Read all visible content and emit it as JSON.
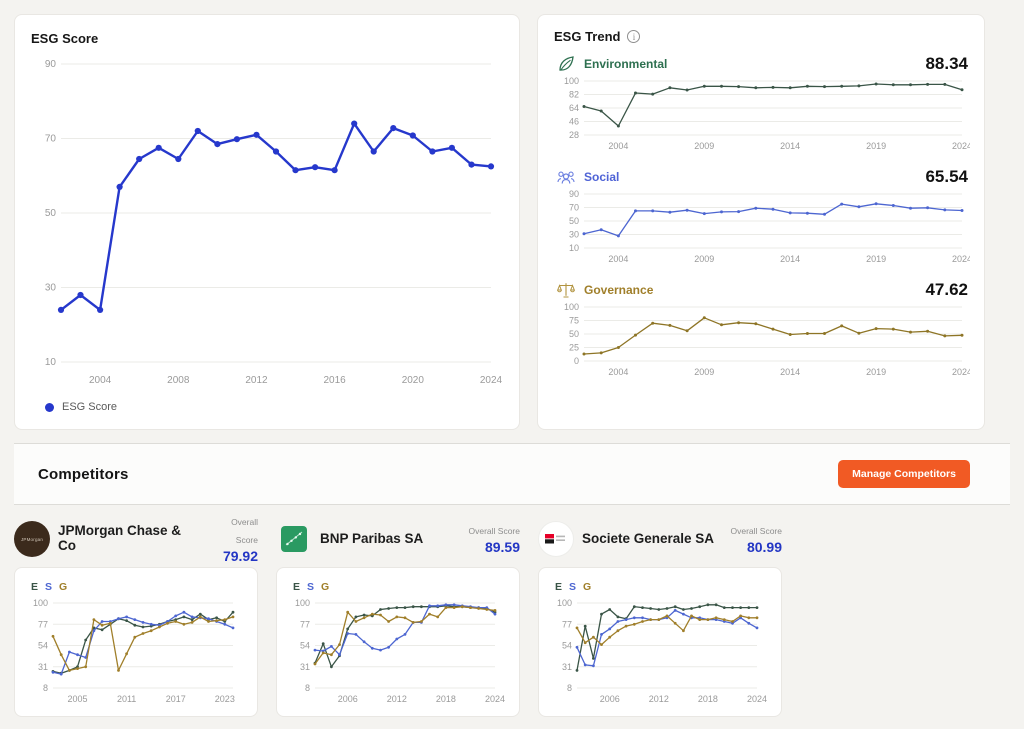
{
  "page": {
    "background": "#f4f3f0"
  },
  "esg_score_card": {
    "title": "ESG Score",
    "legend_label": "ESG Score",
    "line_color": "#2638cc"
  },
  "esg_trend_card": {
    "title": "ESG Trend",
    "sections": [
      {
        "label": "Environmental",
        "value": "88.34",
        "label_color": "#2e7050"
      },
      {
        "label": "Social",
        "value": "65.54",
        "label_color": "#4f63d6"
      },
      {
        "label": "Governance",
        "value": "47.62",
        "label_color": "#a07f2a"
      }
    ]
  },
  "competitors": {
    "heading": "Competitors",
    "manage_button_label": "Manage Competitors",
    "manage_button_color": "#f15a24",
    "overall_score_label": "Overall Score",
    "score_color": "#2336c4",
    "esg_legend": [
      {
        "letter": "E",
        "color": "#3a5547"
      },
      {
        "letter": "S",
        "color": "#4d66d1"
      },
      {
        "letter": "G",
        "color": "#a07f2a"
      }
    ],
    "items": [
      {
        "name": "JPMorgan Chase & Co",
        "overall_score": "79.92",
        "logo_text": "JPMorgan",
        "logo_color": "#3b2a1c"
      },
      {
        "name": "BNP Paribas SA",
        "overall_score": "89.59",
        "logo_color": "#2a9a62"
      },
      {
        "name": "Societe Generale SA",
        "overall_score": "80.99",
        "logo_colors": [
          "#e60028",
          "#1a1a1a"
        ]
      }
    ]
  },
  "chart_data": [
    {
      "id": "esg_score",
      "type": "line",
      "title": "ESG Score",
      "x": [
        2002,
        2003,
        2004,
        2005,
        2006,
        2007,
        2008,
        2009,
        2010,
        2011,
        2012,
        2013,
        2014,
        2015,
        2016,
        2017,
        2018,
        2019,
        2020,
        2021,
        2022,
        2023,
        2024
      ],
      "xticks": [
        2004,
        2008,
        2012,
        2016,
        2020,
        2024
      ],
      "yticks": [
        10,
        30,
        50,
        70,
        90
      ],
      "ylim": [
        10,
        90
      ],
      "grid": true,
      "legend_position": "bottom-left",
      "series": [
        {
          "name": "ESG Score",
          "color": "#2638cc",
          "values": [
            24,
            28,
            24,
            57,
            64.5,
            67.5,
            64.5,
            72,
            68.5,
            69.8,
            71,
            66.5,
            61.5,
            62.3,
            61.5,
            74,
            66.5,
            72.8,
            70.8,
            66.5,
            67.5,
            63,
            62.5
          ]
        }
      ]
    },
    {
      "id": "environmental",
      "type": "line",
      "title": "Environmental",
      "current_value": 88.34,
      "x": [
        2002,
        2003,
        2004,
        2005,
        2006,
        2007,
        2008,
        2009,
        2010,
        2011,
        2012,
        2013,
        2014,
        2015,
        2016,
        2017,
        2018,
        2019,
        2020,
        2021,
        2022,
        2023,
        2024
      ],
      "xticks": [
        2004,
        2009,
        2014,
        2019,
        2024
      ],
      "yticks": [
        28,
        46,
        64,
        82,
        100
      ],
      "ylim": [
        28,
        100
      ],
      "grid": true,
      "series": [
        {
          "name": "Environmental",
          "color": "#3a5547",
          "values": [
            66,
            60,
            40,
            84,
            82.5,
            91,
            88,
            93,
            93,
            92.5,
            91,
            91.5,
            91,
            93,
            92.5,
            93,
            93.5,
            96,
            95,
            95,
            95.5,
            95.5,
            88.34
          ]
        }
      ]
    },
    {
      "id": "social",
      "type": "line",
      "title": "Social",
      "current_value": 65.54,
      "x": [
        2002,
        2003,
        2004,
        2005,
        2006,
        2007,
        2008,
        2009,
        2010,
        2011,
        2012,
        2013,
        2014,
        2015,
        2016,
        2017,
        2018,
        2019,
        2020,
        2021,
        2022,
        2023,
        2024
      ],
      "xticks": [
        2004,
        2009,
        2014,
        2019,
        2024
      ],
      "yticks": [
        10,
        30,
        50,
        70,
        90
      ],
      "ylim": [
        10,
        90
      ],
      "grid": true,
      "series": [
        {
          "name": "Social",
          "color": "#4d66d1",
          "values": [
            31,
            37,
            28,
            65,
            65,
            63,
            66,
            61,
            63.5,
            64,
            69,
            67.5,
            62,
            61.5,
            60,
            75,
            71,
            75.5,
            73,
            69,
            69.5,
            66.5,
            65.54
          ]
        }
      ]
    },
    {
      "id": "governance",
      "type": "line",
      "title": "Governance",
      "current_value": 47.62,
      "x": [
        2002,
        2003,
        2004,
        2005,
        2006,
        2007,
        2008,
        2009,
        2010,
        2011,
        2012,
        2013,
        2014,
        2015,
        2016,
        2017,
        2018,
        2019,
        2020,
        2021,
        2022,
        2023,
        2024
      ],
      "xticks": [
        2004,
        2009,
        2014,
        2019,
        2024
      ],
      "yticks": [
        0,
        25,
        50,
        75,
        100
      ],
      "ylim": [
        0,
        100
      ],
      "grid": true,
      "series": [
        {
          "name": "Governance",
          "color": "#8e7526",
          "values": [
            13,
            15,
            25,
            48,
            70,
            66,
            56,
            80,
            67,
            71,
            69,
            59,
            49,
            51,
            51,
            65,
            51.5,
            60,
            59,
            53.5,
            55,
            46.5,
            47.62
          ]
        }
      ]
    },
    {
      "id": "comp_jpmorgan",
      "type": "line",
      "title": "JPMorgan Chase & Co ESG",
      "x": [
        2002,
        2003,
        2004,
        2005,
        2006,
        2007,
        2008,
        2009,
        2010,
        2011,
        2012,
        2013,
        2014,
        2015,
        2016,
        2017,
        2018,
        2019,
        2020,
        2021,
        2022,
        2023,
        2024
      ],
      "xticks": [
        2005,
        2011,
        2017,
        2023
      ],
      "yticks": [
        8,
        31,
        54,
        77,
        100
      ],
      "ylim": [
        8,
        100
      ],
      "grid": true,
      "series": [
        {
          "name": "E",
          "color": "#3a5547",
          "values": [
            26,
            24,
            27,
            31,
            60,
            73,
            71,
            77,
            83,
            81,
            76,
            74,
            75,
            77,
            80,
            82,
            85,
            82,
            88,
            82,
            84,
            80,
            90
          ]
        },
        {
          "name": "S",
          "color": "#4d66d1",
          "values": [
            25,
            23,
            47,
            44,
            41,
            70,
            80,
            80,
            83,
            85,
            82,
            79,
            77,
            76,
            80,
            86,
            90,
            85,
            84,
            83,
            80,
            77,
            73
          ]
        },
        {
          "name": "G",
          "color": "#a07f2a",
          "values": [
            64,
            44,
            27,
            29,
            31,
            82,
            76,
            78,
            27,
            45,
            63,
            67,
            70,
            74,
            78,
            80,
            77,
            79,
            85,
            80,
            81,
            82,
            85
          ]
        }
      ]
    },
    {
      "id": "comp_bnp",
      "type": "line",
      "title": "BNP Paribas SA ESG",
      "x": [
        2002,
        2003,
        2004,
        2005,
        2006,
        2007,
        2008,
        2009,
        2010,
        2011,
        2012,
        2013,
        2014,
        2015,
        2016,
        2017,
        2018,
        2019,
        2020,
        2021,
        2022,
        2023,
        2024
      ],
      "xticks": [
        2006,
        2012,
        2018,
        2024
      ],
      "yticks": [
        8,
        31,
        54,
        77,
        100
      ],
      "ylim": [
        8,
        100
      ],
      "grid": true,
      "series": [
        {
          "name": "E",
          "color": "#3a5547",
          "values": [
            35,
            56,
            31,
            43,
            72,
            85,
            87,
            86,
            93,
            94,
            95,
            95,
            96,
            96,
            96,
            96,
            97,
            96,
            96,
            95,
            95,
            94,
            90
          ]
        },
        {
          "name": "S",
          "color": "#4d66d1",
          "values": [
            49,
            48,
            53,
            44,
            67,
            66,
            58,
            51,
            49,
            52,
            61,
            66,
            79,
            79,
            97,
            97,
            98,
            98,
            97,
            96,
            95,
            95,
            88
          ]
        },
        {
          "name": "G",
          "color": "#a07f2a",
          "values": [
            34,
            46,
            44,
            55,
            90,
            80,
            84,
            88,
            87,
            80,
            85,
            84,
            79,
            80,
            88,
            85,
            95,
            95,
            96,
            95,
            94,
            93,
            92
          ]
        }
      ]
    },
    {
      "id": "comp_socgen",
      "type": "line",
      "title": "Societe Generale SA ESG",
      "x": [
        2002,
        2003,
        2004,
        2005,
        2006,
        2007,
        2008,
        2009,
        2010,
        2011,
        2012,
        2013,
        2014,
        2015,
        2016,
        2017,
        2018,
        2019,
        2020,
        2021,
        2022,
        2023,
        2024
      ],
      "xticks": [
        2006,
        2012,
        2018,
        2024
      ],
      "yticks": [
        8,
        31,
        54,
        77,
        100
      ],
      "ylim": [
        8,
        100
      ],
      "grid": true,
      "series": [
        {
          "name": "E",
          "color": "#3a5547",
          "values": [
            27,
            75,
            40,
            88,
            93,
            85,
            83,
            96,
            95,
            94,
            93,
            94,
            96,
            93,
            94,
            96,
            98,
            98,
            95,
            95,
            95,
            95,
            95
          ]
        },
        {
          "name": "S",
          "color": "#4d66d1",
          "values": [
            52,
            33,
            32,
            66,
            72,
            80,
            82,
            84,
            84,
            82,
            82,
            84,
            92,
            88,
            84,
            84,
            82,
            82,
            80,
            78,
            84,
            78,
            73
          ]
        },
        {
          "name": "G",
          "color": "#a07f2a",
          "values": [
            73,
            57,
            63,
            55,
            63,
            70,
            75,
            77,
            80,
            82,
            82,
            86,
            78,
            70,
            86,
            82,
            82,
            84,
            82,
            80,
            86,
            84,
            84
          ]
        }
      ]
    }
  ]
}
